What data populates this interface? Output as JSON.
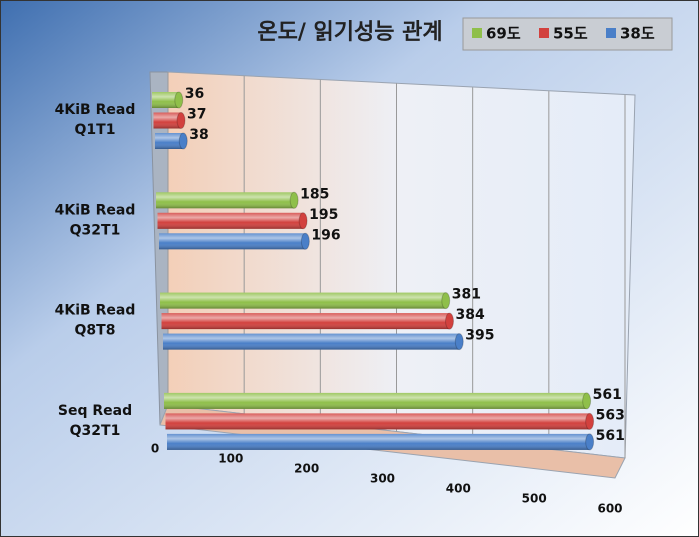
{
  "chart_data": {
    "type": "bar",
    "orientation": "horizontal",
    "title": "온도/ 읽기성능 관계",
    "categories": [
      "4KiB Read\nQ1T1",
      "4KiB Read\nQ32T1",
      "4KiB Read\nQ8T8",
      "Seq Read\nQ32T1"
    ],
    "series": [
      {
        "name": "69도",
        "color": "#8fbf4a",
        "values": [
          36,
          185,
          381,
          561
        ]
      },
      {
        "name": "55도",
        "color": "#d2413e",
        "values": [
          37,
          195,
          384,
          563
        ]
      },
      {
        "name": "38도",
        "color": "#4a7fc8",
        "values": [
          38,
          196,
          395,
          561
        ]
      }
    ],
    "xlim": [
      0,
      600
    ],
    "xticks": [
      0,
      100,
      200,
      300,
      400,
      500,
      600
    ],
    "grid": true,
    "legend": "top-right"
  }
}
